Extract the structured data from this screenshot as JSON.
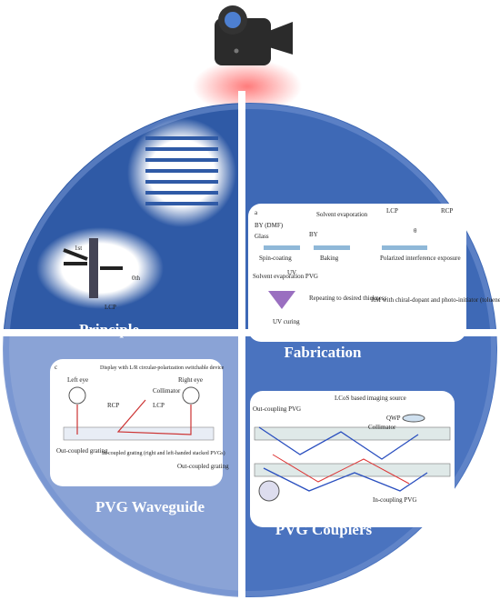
{
  "quadrants": [
    {
      "label": "Principle",
      "texts": [
        "1st",
        "0th",
        "LCP"
      ]
    },
    {
      "label": "Fabrication",
      "texts": [
        "a",
        "BY (DMF)",
        "Glass",
        "Spin-coating",
        "Solvent evaporation",
        "BY",
        "Baking",
        "LCP",
        "RCP",
        "θ",
        "Polarized interference exposure",
        "Solvent evaporation PVG",
        "UV",
        "Repeating to desired thickness",
        "UV curing",
        "RM with chiral-dopant and photo-initiator (toluene)"
      ]
    },
    {
      "label": "PVG Waveguide",
      "texts": [
        "c",
        "Left eye",
        "Display with L/R circular-polarization switchable device",
        "Right eye",
        "Collimator",
        "RCP",
        "LCP",
        "Out-coupled grating",
        "In-coupled grating (right and left-handed stacked PVGs)",
        "Out-coupled grating"
      ]
    },
    {
      "label": "PVG Couplers",
      "texts": [
        "LCoS based imaging source",
        "Out-coupling PVG",
        "QWP",
        "Collimator",
        "In-coupling PVG"
      ]
    }
  ]
}
